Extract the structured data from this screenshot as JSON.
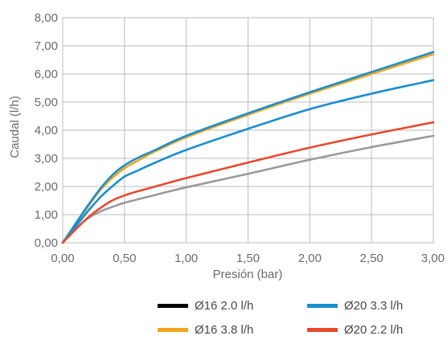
{
  "chart_data": {
    "type": "line",
    "xlabel": "Presión (bar)",
    "ylabel": "Caudal (l/h)",
    "xlim": [
      0,
      3
    ],
    "ylim": [
      0,
      8
    ],
    "x_ticks": [
      "0,00",
      "0,50",
      "1,00",
      "1,50",
      "2,00",
      "2,50",
      "3,00"
    ],
    "y_ticks": [
      "0,00",
      "1,00",
      "2,00",
      "3,00",
      "4,00",
      "5,00",
      "6,00",
      "7,00",
      "8,00"
    ],
    "grid": true,
    "legend_position": "bottom",
    "series": [
      {
        "name": "Ø16 2.0 l/h",
        "color": "#9a9a9a",
        "legend_color": "#000000",
        "x": [
          0,
          0.1,
          0.2,
          0.3,
          0.4,
          0.5,
          0.75,
          1.0,
          1.5,
          2.0,
          2.5,
          3.0
        ],
        "y": [
          0,
          0.48,
          0.85,
          1.1,
          1.27,
          1.42,
          1.7,
          1.97,
          2.45,
          2.95,
          3.4,
          3.8
        ]
      },
      {
        "name": "Ø16 3.8 l/h",
        "color": "#f2a51c",
        "legend_color": "#f2a51c",
        "x": [
          0,
          0.1,
          0.2,
          0.3,
          0.4,
          0.5,
          0.6,
          0.75,
          1.0,
          1.5,
          2.0,
          2.5,
          3.0
        ],
        "y": [
          0,
          0.62,
          1.25,
          1.85,
          2.3,
          2.65,
          2.9,
          3.25,
          3.75,
          4.55,
          5.3,
          6.0,
          6.7
        ]
      },
      {
        "name": "Ø20 3.3 l/h",
        "color": "#1a8fd0",
        "legend_color": "#1a8fd0",
        "x": [
          0,
          0.1,
          0.2,
          0.3,
          0.4,
          0.5,
          0.6,
          0.75,
          1.0,
          1.5,
          2.0,
          2.5,
          3.0
        ],
        "y": [
          0,
          0.65,
          1.3,
          1.9,
          2.4,
          2.75,
          3.0,
          3.3,
          3.8,
          4.6,
          5.35,
          6.07,
          6.78
        ]
      },
      {
        "name": "Ø20 3.3 l/h",
        "color": "#1a8fd0",
        "legend_color": "#1a8fd0",
        "x": [
          0,
          0.1,
          0.2,
          0.3,
          0.4,
          0.5,
          0.6,
          0.75,
          1.0,
          1.5,
          2.0,
          2.5,
          3.0
        ],
        "y": [
          0,
          0.55,
          1.1,
          1.6,
          2.0,
          2.35,
          2.55,
          2.85,
          3.3,
          4.05,
          4.75,
          5.3,
          5.78
        ]
      },
      {
        "name": "Ø20 2.2 l/h",
        "color": "#e84a2c",
        "legend_color": "#e84a2c",
        "x": [
          0,
          0.1,
          0.2,
          0.3,
          0.4,
          0.5,
          0.6,
          0.75,
          1.0,
          1.5,
          2.0,
          2.5,
          3.0
        ],
        "y": [
          0,
          0.45,
          0.88,
          1.22,
          1.5,
          1.68,
          1.82,
          2.0,
          2.3,
          2.85,
          3.38,
          3.85,
          4.28
        ]
      }
    ],
    "legend": [
      {
        "label": "Ø16 2.0 l/h",
        "color": "#000000"
      },
      {
        "label": "Ø20 3.3 l/h",
        "color": "#1a8fd0"
      },
      {
        "label": "Ø16 3.8 l/h",
        "color": "#f2a51c"
      },
      {
        "label": "Ø20 2.2 l/h",
        "color": "#e84a2c"
      }
    ]
  }
}
